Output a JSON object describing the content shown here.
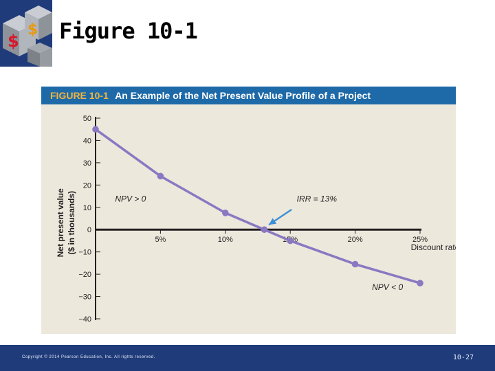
{
  "slide": {
    "title": "Figure 10-1"
  },
  "figure": {
    "label": "FIGURE 10-1",
    "caption": "An Example of the Net Present Value Profile of a Project"
  },
  "chart_data": {
    "type": "line",
    "xlabel": "Discount rate",
    "ylabel": "Net present value",
    "ylabel_2": "($ in thousands)",
    "x_ticks": [
      "5%",
      "10%",
      "15%",
      "20%",
      "25%"
    ],
    "y_ticks": [
      "50",
      "40",
      "30",
      "20",
      "10",
      "0",
      "−10",
      "−20",
      "−30",
      "−40"
    ],
    "ylim": [
      -40,
      50
    ],
    "xlim": [
      0,
      25
    ],
    "grid": false,
    "series": [
      {
        "x": [
          0,
          5,
          10,
          13,
          15,
          20,
          25
        ],
        "y": [
          45,
          24,
          7.5,
          0,
          -5,
          -15.5,
          -24
        ],
        "color": "#8a78c2"
      }
    ],
    "annotations": {
      "npv_positive": "NPV > 0",
      "npv_negative": "NPV < 0",
      "irr": "IRR = 13%"
    },
    "arrow_color": "#3d8fd6"
  },
  "footer": {
    "copyright": "Copyright © 2014 Pearson Education, Inc. All rights reserved.",
    "page": "10-27"
  }
}
